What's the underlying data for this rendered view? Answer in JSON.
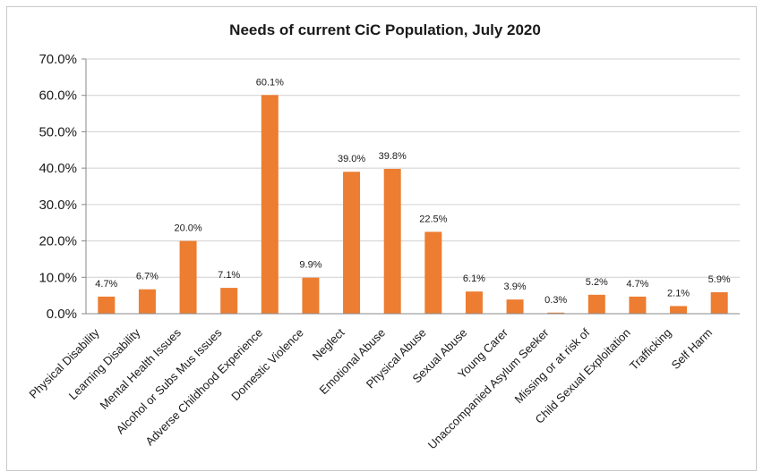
{
  "chart_data": {
    "type": "bar",
    "title": "Needs of current CiC Population, July 2020",
    "xlabel": "",
    "ylabel": "",
    "ylim": [
      0,
      70
    ],
    "yticks": [
      "0.0%",
      "10.0%",
      "20.0%",
      "30.0%",
      "40.0%",
      "50.0%",
      "60.0%",
      "70.0%"
    ],
    "categories": [
      "Physical Disability",
      "Learning Disability",
      "Mental Health Issues",
      "Alcohol or Subs Mus Issues",
      "Adverse Childhood Experience",
      "Domestic Violence",
      "Neglect",
      "Emotional Abuse",
      "Physical Abuse",
      "Sexual Abuse",
      "Young Carer",
      "Unaccompanied Asylum Seeker",
      "Missing or at risk of",
      "Child Sexual Exploitation",
      "Trafficking",
      "Self Harm"
    ],
    "values": [
      4.7,
      6.7,
      20.0,
      7.1,
      60.1,
      9.9,
      39.0,
      39.8,
      22.5,
      6.1,
      3.9,
      0.3,
      5.2,
      4.7,
      2.1,
      5.9
    ],
    "data_labels": [
      "4.7%",
      "6.7%",
      "20.0%",
      "7.1%",
      "60.1%",
      "9.9%",
      "39.0%",
      "39.8%",
      "22.5%",
      "6.1%",
      "3.9%",
      "0.3%",
      "5.2%",
      "4.7%",
      "2.1%",
      "5.9%"
    ],
    "bar_color": "#ed7d31",
    "grid": true,
    "legend": "none"
  }
}
